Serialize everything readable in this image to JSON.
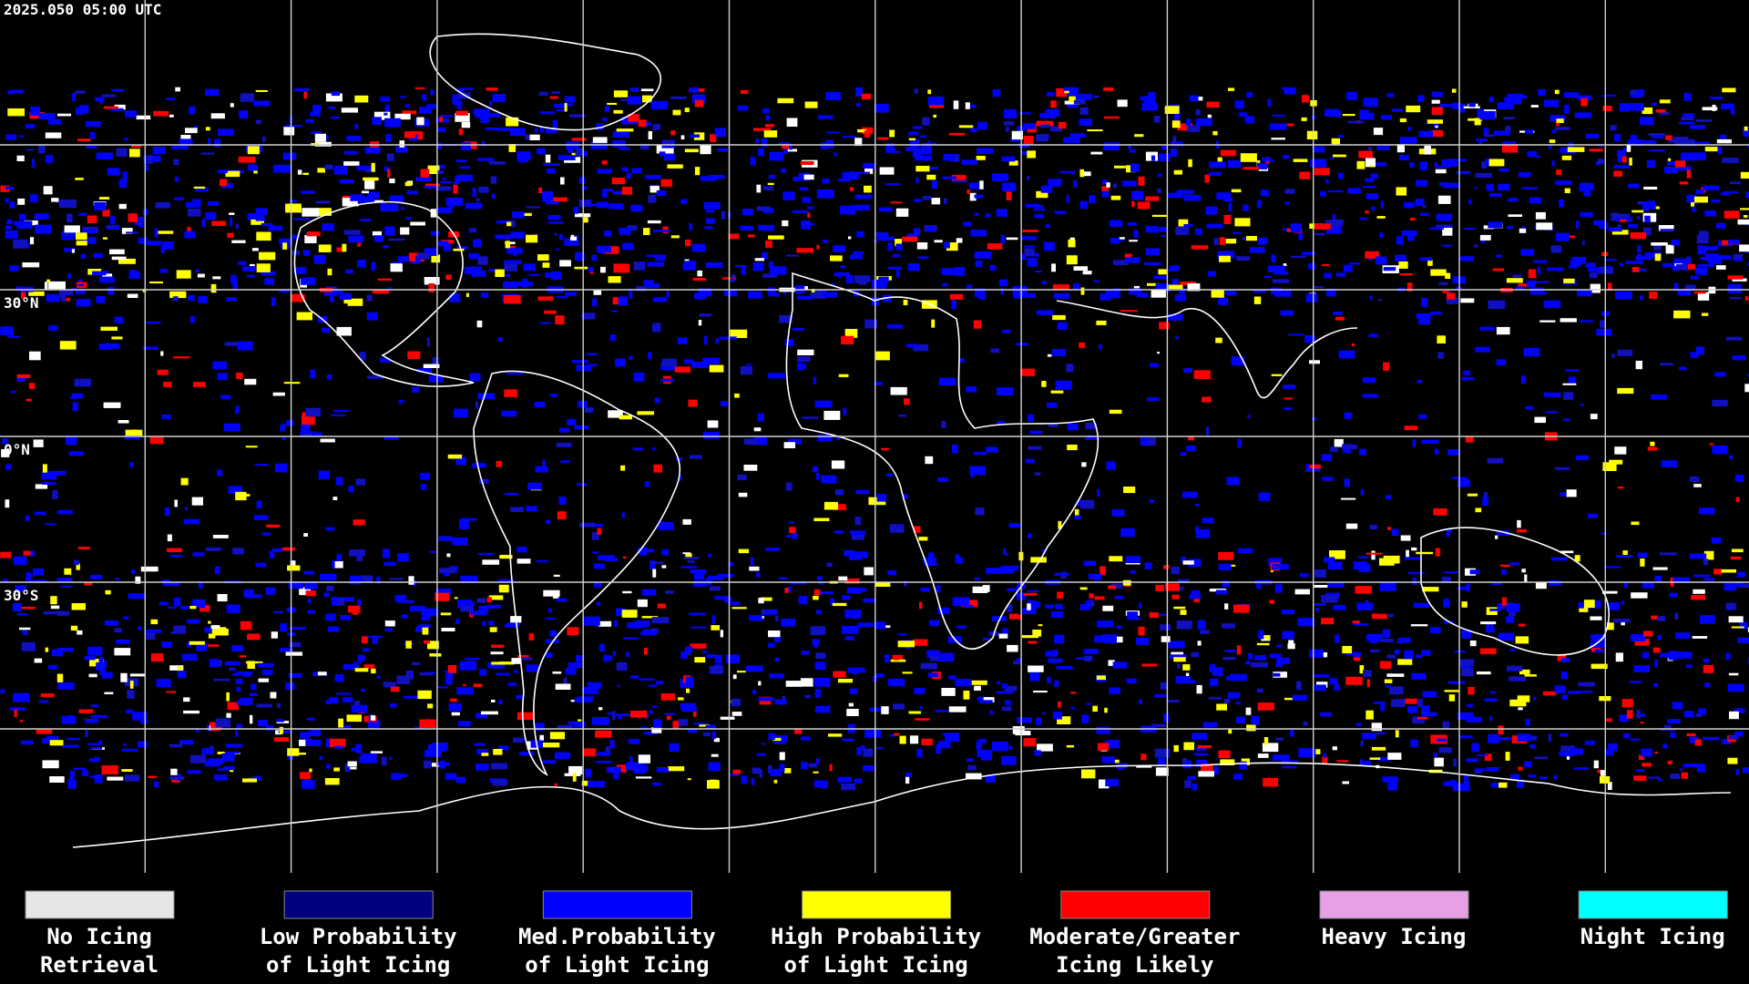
{
  "header": {
    "timestamp": "2025.050 05:00 UTC"
  },
  "grid_labels": [
    "30°N",
    "0°N",
    "30°S"
  ],
  "legend": [
    {
      "lines": [
        "No Icing",
        "Retrieval"
      ],
      "color": "#e6e6e6"
    },
    {
      "lines": [
        "Low Probability",
        "of Light Icing"
      ],
      "color": "#000080"
    },
    {
      "lines": [
        "Med.Probability",
        "of Light Icing"
      ],
      "color": "#0000ff"
    },
    {
      "lines": [
        "High Probability",
        "of Light Icing"
      ],
      "color": "#ffff00"
    },
    {
      "lines": [
        "Moderate/Greater",
        "Icing Likely"
      ],
      "color": "#ff0000"
    },
    {
      "lines": [
        "Heavy Icing"
      ],
      "color": "#e6a0e6"
    },
    {
      "lines": [
        "Night Icing"
      ],
      "color": "#00ffff"
    }
  ]
}
